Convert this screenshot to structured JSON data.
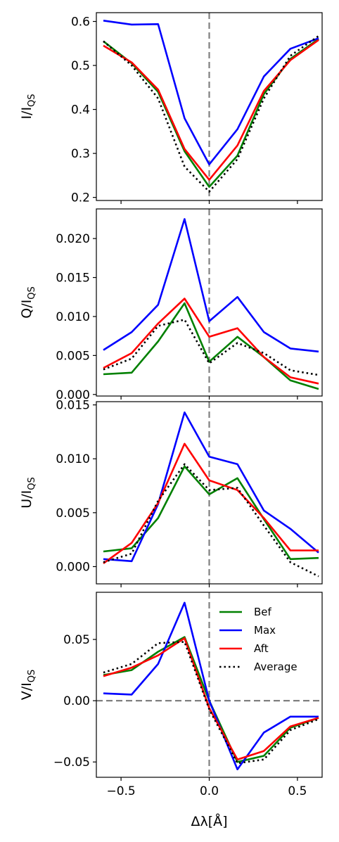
{
  "chart_data": {
    "type": "line",
    "xlabel": "Δλ[Å]",
    "xlim": [
      -0.64,
      0.64
    ],
    "xticks": [
      -0.5,
      0.0,
      0.5
    ],
    "xtick_labels": [
      "−0.5",
      "0.0",
      "0.5"
    ],
    "x": [
      -0.6,
      -0.44,
      -0.29,
      -0.14,
      0.0,
      0.16,
      0.31,
      0.46,
      0.62
    ],
    "legend": {
      "placement": "inside-top-right of bottom panel",
      "entries": [
        "Bef",
        "Max",
        "Aft",
        "Average"
      ]
    },
    "panels": [
      {
        "name": "I",
        "ylabel_main": "I/I",
        "ylabel_sub": "QS",
        "ylim": [
          0.193,
          0.62
        ],
        "yticks": [
          0.2,
          0.3,
          0.4,
          0.5,
          0.6
        ],
        "ytick_labels": [
          "0.2",
          "0.3",
          "0.4",
          "0.5",
          "0.6"
        ],
        "zero_line": false,
        "series": [
          {
            "name": "Bef",
            "color": "#008000",
            "style": "solid",
            "values": [
              0.555,
              0.505,
              0.44,
              0.305,
              0.224,
              0.295,
              0.435,
              0.515,
              0.56
            ]
          },
          {
            "name": "Max",
            "color": "#0000ff",
            "style": "solid",
            "values": [
              0.602,
              0.593,
              0.594,
              0.38,
              0.275,
              0.355,
              0.475,
              0.538,
              0.562
            ]
          },
          {
            "name": "Aft",
            "color": "#ff0000",
            "style": "solid",
            "values": [
              0.545,
              0.507,
              0.445,
              0.31,
              0.24,
              0.318,
              0.442,
              0.512,
              0.558
            ]
          },
          {
            "name": "Average",
            "color": "#000000",
            "style": "dotted",
            "values": [
              0.555,
              0.5,
              0.425,
              0.27,
              0.213,
              0.287,
              0.425,
              0.522,
              0.567
            ]
          }
        ]
      },
      {
        "name": "Q",
        "ylabel_main": "Q/I",
        "ylabel_sub": "QS",
        "ylim": [
          -0.0002,
          0.0238
        ],
        "yticks": [
          0.0,
          0.005,
          0.01,
          0.015,
          0.02
        ],
        "ytick_labels": [
          "0.000",
          "0.005",
          "0.010",
          "0.015",
          "0.020"
        ],
        "zero_line": false,
        "series": [
          {
            "name": "Bef",
            "color": "#008000",
            "style": "solid",
            "values": [
              0.0026,
              0.0028,
              0.0068,
              0.0117,
              0.0042,
              0.0074,
              0.0048,
              0.0018,
              0.0007
            ]
          },
          {
            "name": "Max",
            "color": "#0000ff",
            "style": "solid",
            "values": [
              0.0057,
              0.008,
              0.0115,
              0.0225,
              0.0094,
              0.0125,
              0.008,
              0.0059,
              0.0055
            ]
          },
          {
            "name": "Aft",
            "color": "#ff0000",
            "style": "solid",
            "values": [
              0.0034,
              0.0053,
              0.0091,
              0.0123,
              0.0074,
              0.0085,
              0.0048,
              0.0022,
              0.0014
            ]
          },
          {
            "name": "Average",
            "color": "#000000",
            "style": "dotted",
            "values": [
              0.0032,
              0.0046,
              0.0088,
              0.0096,
              0.004,
              0.0066,
              0.0053,
              0.0031,
              0.0025
            ]
          }
        ]
      },
      {
        "name": "U",
        "ylabel_main": "U/I",
        "ylabel_sub": "QS",
        "ylim": [
          -0.0016,
          0.0153
        ],
        "yticks": [
          0.0,
          0.005,
          0.01,
          0.015
        ],
        "ytick_labels": [
          "0.000",
          "0.005",
          "0.010",
          "0.015"
        ],
        "zero_line": false,
        "series": [
          {
            "name": "Bef",
            "color": "#008000",
            "style": "solid",
            "values": [
              0.0014,
              0.0017,
              0.0045,
              0.0093,
              0.0067,
              0.0082,
              0.0044,
              0.0007,
              0.0008
            ]
          },
          {
            "name": "Max",
            "color": "#0000ff",
            "style": "solid",
            "values": [
              0.0007,
              0.0005,
              0.0058,
              0.0143,
              0.0102,
              0.0095,
              0.0052,
              0.0035,
              0.0013
            ]
          },
          {
            "name": "Aft",
            "color": "#ff0000",
            "style": "solid",
            "values": [
              0.0003,
              0.0022,
              0.0059,
              0.0114,
              0.008,
              0.0071,
              0.0045,
              0.0015,
              0.0015
            ]
          },
          {
            "name": "Average",
            "color": "#000000",
            "style": "dotted",
            "values": [
              0.0004,
              0.0012,
              0.0061,
              0.0095,
              0.0071,
              0.0073,
              0.0038,
              0.0004,
              -0.0009
            ]
          }
        ]
      },
      {
        "name": "V",
        "ylabel_main": "V/I",
        "ylabel_sub": "QS",
        "ylim": [
          -0.0625,
          0.0885
        ],
        "yticks": [
          -0.05,
          0.0,
          0.05
        ],
        "ytick_labels": [
          "−0.05",
          "0.00",
          "0.05"
        ],
        "zero_line": true,
        "series": [
          {
            "name": "Bef",
            "color": "#008000",
            "style": "solid",
            "values": [
              0.021,
              0.025,
              0.04,
              0.052,
              0.0,
              -0.05,
              -0.045,
              -0.022,
              -0.014
            ]
          },
          {
            "name": "Max",
            "color": "#0000ff",
            "style": "solid",
            "values": [
              0.006,
              0.005,
              0.03,
              0.08,
              0.0,
              -0.056,
              -0.026,
              -0.013,
              -0.013
            ]
          },
          {
            "name": "Aft",
            "color": "#ff0000",
            "style": "solid",
            "values": [
              0.02,
              0.027,
              0.037,
              0.051,
              -0.006,
              -0.048,
              -0.041,
              -0.021,
              -0.014
            ]
          },
          {
            "name": "Average",
            "color": "#000000",
            "style": "dotted",
            "values": [
              0.023,
              0.03,
              0.047,
              0.048,
              -0.007,
              -0.051,
              -0.048,
              -0.024,
              -0.015
            ]
          }
        ]
      }
    ]
  }
}
